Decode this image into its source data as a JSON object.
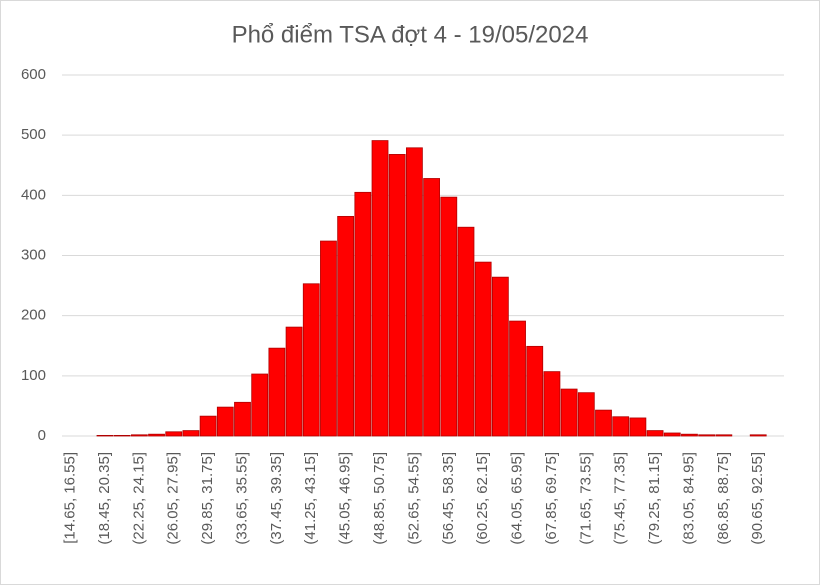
{
  "chart_data": {
    "type": "bar",
    "title": "Phổ điểm TSA đợt 4 - 19/05/2024",
    "categories": [
      "[14.65, 16.55]",
      null,
      "(18.45, 20.35]",
      null,
      "(22.25, 24.15]",
      null,
      "(26.05, 27.95]",
      null,
      "(29.85, 31.75]",
      null,
      "(33.65, 35.55]",
      null,
      "(37.45, 39.35]",
      null,
      "(41.25, 43.15]",
      null,
      "(45.05, 46.95]",
      null,
      "(48.85, 50.75]",
      null,
      "(52.65, 54.55]",
      null,
      "(56.45, 58.35]",
      null,
      "(60.25, 62.15]",
      null,
      "(64.05, 65.95]",
      null,
      "(67.85, 69.75]",
      null,
      "(71.65, 73.55]",
      null,
      "(75.45, 77.35]",
      null,
      "(79.25, 81.15]",
      null,
      "(83.05, 84.95]",
      null,
      "(86.85, 88.75]",
      null,
      "(90.65, 92.55]",
      null
    ],
    "values": [
      0,
      0,
      1,
      1,
      2,
      3,
      7,
      9,
      33,
      48,
      56,
      103,
      146,
      181,
      253,
      324,
      365,
      405,
      491,
      468,
      479,
      428,
      397,
      347,
      289,
      264,
      191,
      149,
      107,
      78,
      72,
      43,
      32,
      30,
      9,
      5,
      3,
      2,
      2,
      0,
      2,
      0
    ],
    "color": "#ff0000",
    "ylim": [
      0,
      600
    ],
    "yticks": [
      0,
      100,
      200,
      300,
      400,
      500,
      600
    ],
    "grid": true
  }
}
